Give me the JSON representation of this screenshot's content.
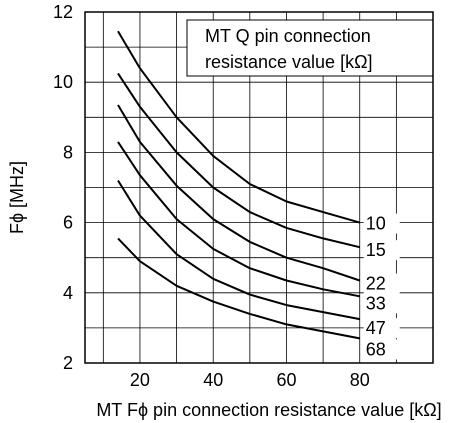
{
  "chart_data": {
    "type": "line",
    "title": "",
    "xlabel": "MT Fϕ pin connection resistance value [kΩ]",
    "ylabel": "Fϕ [MHz]",
    "xlim": [
      5,
      100
    ],
    "ylim": [
      2,
      12
    ],
    "x_ticks": [
      20,
      40,
      60,
      80
    ],
    "y_ticks": [
      2,
      4,
      6,
      8,
      10,
      12
    ],
    "grid": true,
    "legend_title": [
      "MT Q pin connection",
      "resistance value [kΩ]"
    ],
    "series": [
      {
        "name": "10",
        "x": [
          14,
          20,
          30,
          40,
          50,
          60,
          70,
          80
        ],
        "y": [
          11.45,
          10.4,
          9.0,
          7.9,
          7.1,
          6.6,
          6.3,
          6.0
        ]
      },
      {
        "name": "15",
        "x": [
          14,
          20,
          30,
          40,
          50,
          60,
          70,
          80
        ],
        "y": [
          10.25,
          9.3,
          8.0,
          7.0,
          6.3,
          5.85,
          5.55,
          5.3
        ]
      },
      {
        "name": "22",
        "x": [
          14,
          20,
          30,
          40,
          50,
          60,
          70,
          80
        ],
        "y": [
          9.35,
          8.3,
          7.05,
          6.1,
          5.45,
          5.0,
          4.7,
          4.35
        ]
      },
      {
        "name": "33",
        "x": [
          14,
          20,
          30,
          40,
          50,
          60,
          70,
          80
        ],
        "y": [
          8.3,
          7.35,
          6.1,
          5.25,
          4.7,
          4.35,
          4.1,
          3.9
        ]
      },
      {
        "name": "47",
        "x": [
          14,
          20,
          30,
          40,
          50,
          60,
          70,
          80
        ],
        "y": [
          7.2,
          6.2,
          5.1,
          4.4,
          3.95,
          3.65,
          3.45,
          3.25
        ]
      },
      {
        "name": "68",
        "x": [
          14,
          20,
          30,
          40,
          50,
          60,
          70,
          80
        ],
        "y": [
          5.55,
          4.9,
          4.2,
          3.75,
          3.4,
          3.1,
          2.9,
          2.7
        ]
      }
    ]
  }
}
